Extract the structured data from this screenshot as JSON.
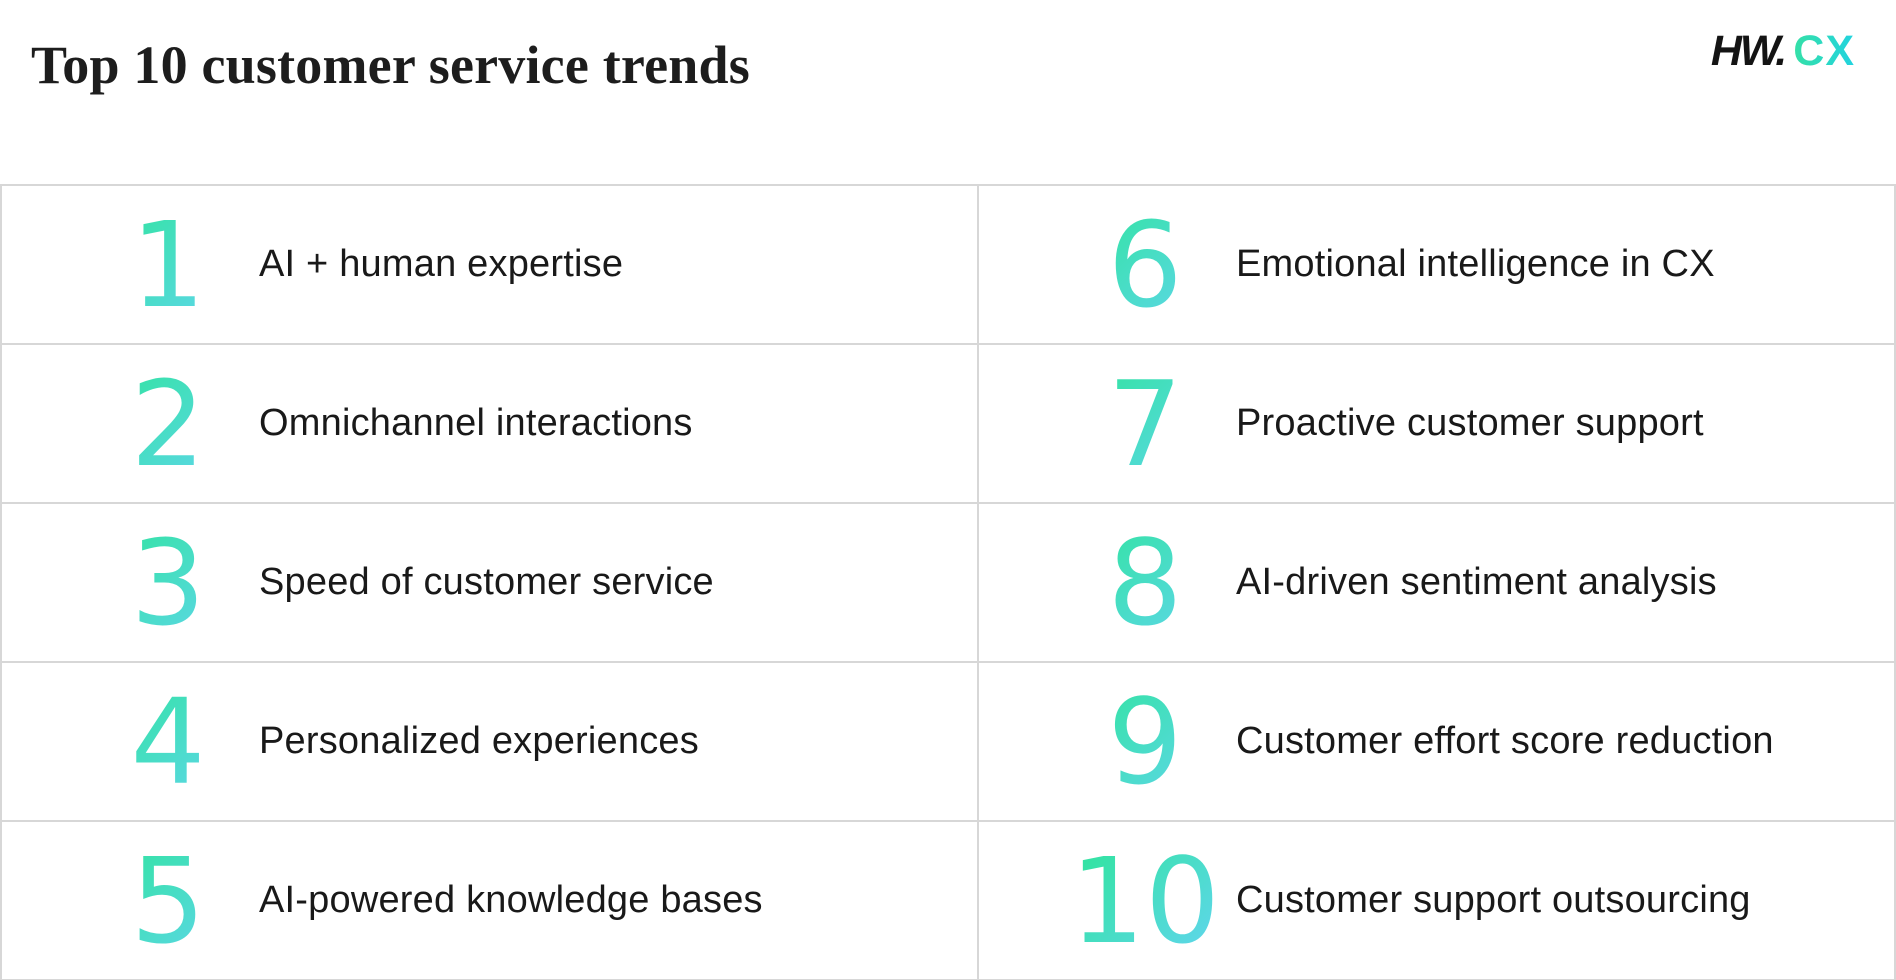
{
  "header": {
    "title": "Top 10 customer service trends",
    "logo": {
      "hw": "HW.",
      "cx": "CX"
    }
  },
  "colors": {
    "number_gradient_start": "#2FE49C",
    "number_gradient_end": "#61D6EE",
    "logo_hw": "#141414",
    "logo_gradient_start": "#35E0A6",
    "logo_gradient_end": "#22D3E0",
    "grid_border": "#D7D7D7",
    "title_text": "#1D1D1D",
    "label_text": "#191919",
    "background": "#FFFFFF"
  },
  "trends": {
    "items": [
      {
        "number": "1",
        "label": "AI + human expertise"
      },
      {
        "number": "2",
        "label": "Omnichannel interactions"
      },
      {
        "number": "3",
        "label": "Speed of customer service"
      },
      {
        "number": "4",
        "label": "Personalized experiences"
      },
      {
        "number": "5",
        "label": "AI-powered knowledge bases"
      },
      {
        "number": "6",
        "label": "Emotional intelligence in CX"
      },
      {
        "number": "7",
        "label": "Proactive customer support"
      },
      {
        "number": "8",
        "label": "AI-driven sentiment analysis"
      },
      {
        "number": "9",
        "label": "Customer effort score reduction"
      },
      {
        "number": "10",
        "label": "Customer support outsourcing"
      }
    ]
  }
}
